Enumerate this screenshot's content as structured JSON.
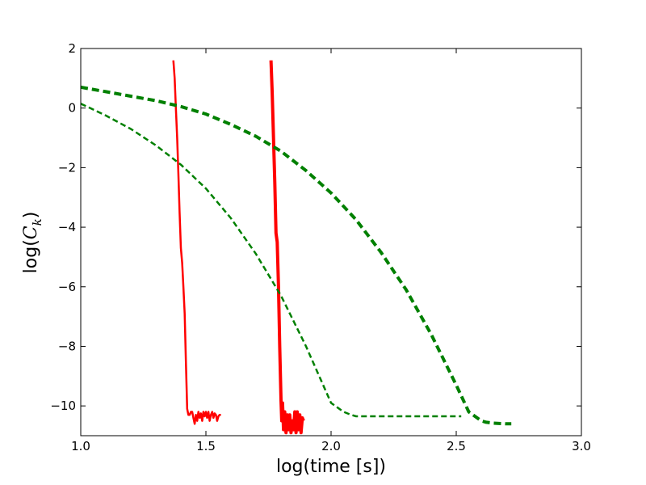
{
  "chart_data": {
    "type": "line",
    "title": "",
    "xlabel": "log(time [s])",
    "ylabel_prefix": "log(",
    "ylabel_var": "C",
    "ylabel_sub": "k",
    "ylabel_suffix": ")",
    "xlim": [
      1.0,
      3.0
    ],
    "ylim": [
      -11,
      2
    ],
    "x_ticks": [
      1.0,
      1.5,
      2.0,
      2.5,
      3.0
    ],
    "x_tick_labels": [
      "1.0",
      "1.5",
      "2.0",
      "2.5",
      "3.0"
    ],
    "y_ticks": [
      2,
      0,
      -2,
      -4,
      -6,
      -8,
      -10
    ],
    "y_tick_labels": [
      "2",
      "0",
      "−2",
      "−4",
      "−6",
      "−8",
      "−10"
    ],
    "grid": false,
    "series": [
      {
        "style": "solid",
        "color": "#ff0000",
        "weight": "normal",
        "x": [
          1.37,
          1.375,
          1.38,
          1.385,
          1.39,
          1.395,
          1.4,
          1.405,
          1.41,
          1.415,
          1.42,
          1.425,
          1.43,
          1.435,
          1.44,
          1.445,
          1.45,
          1.455,
          1.46,
          1.465,
          1.47,
          1.475,
          1.48,
          1.485,
          1.49,
          1.495,
          1.5,
          1.505,
          1.51,
          1.515,
          1.52,
          1.525,
          1.53,
          1.535,
          1.54,
          1.545,
          1.55,
          1.555,
          1.56
        ],
        "y": [
          1.6,
          1.0,
          0.0,
          -1.0,
          -2.2,
          -3.5,
          -4.7,
          -5.2,
          -6.0,
          -6.9,
          -8.5,
          -10.1,
          -10.3,
          -10.3,
          -10.2,
          -10.2,
          -10.4,
          -10.6,
          -10.3,
          -10.5,
          -10.2,
          -10.4,
          -10.25,
          -10.5,
          -10.2,
          -10.35,
          -10.2,
          -10.4,
          -10.2,
          -10.5,
          -10.3,
          -10.2,
          -10.4,
          -10.25,
          -10.3,
          -10.5,
          -10.35,
          -10.3,
          -10.3
        ]
      },
      {
        "style": "solid",
        "color": "#ff0000",
        "weight": "bold",
        "x": [
          1.76,
          1.765,
          1.77,
          1.775,
          1.78,
          1.785,
          1.79,
          1.795,
          1.8,
          1.803,
          1.806,
          1.81,
          1.815,
          1.82,
          1.825,
          1.83,
          1.835,
          1.84,
          1.845,
          1.85,
          1.855,
          1.86,
          1.865,
          1.87,
          1.875,
          1.88,
          1.885,
          1.89
        ],
        "y": [
          1.6,
          0.5,
          -1.0,
          -2.5,
          -4.2,
          -4.5,
          -6.0,
          -8.0,
          -9.8,
          -10.5,
          -9.9,
          -10.8,
          -10.2,
          -10.9,
          -10.3,
          -10.8,
          -10.3,
          -10.9,
          -10.5,
          -10.8,
          -10.2,
          -10.9,
          -10.2,
          -10.8,
          -10.3,
          -10.9,
          -10.4,
          -10.5
        ]
      },
      {
        "style": "dashed",
        "color": "#008000",
        "weight": "normal",
        "x": [
          1.0,
          1.1,
          1.2,
          1.3,
          1.4,
          1.5,
          1.6,
          1.7,
          1.8,
          1.9,
          2.0,
          2.05,
          2.08,
          2.1,
          2.15,
          2.2,
          2.3,
          2.4,
          2.5,
          2.52
        ],
        "y": [
          0.15,
          -0.25,
          -0.7,
          -1.25,
          -1.9,
          -2.7,
          -3.7,
          -4.9,
          -6.3,
          -8.0,
          -9.9,
          -10.2,
          -10.3,
          -10.35,
          -10.35,
          -10.35,
          -10.35,
          -10.35,
          -10.35,
          -10.35
        ]
      },
      {
        "style": "dashed",
        "color": "#008000",
        "weight": "bold",
        "x": [
          1.0,
          1.1,
          1.2,
          1.3,
          1.4,
          1.5,
          1.6,
          1.7,
          1.8,
          1.9,
          2.0,
          2.1,
          2.2,
          2.3,
          2.4,
          2.5,
          2.55,
          2.6,
          2.62,
          2.65,
          2.7,
          2.72
        ],
        "y": [
          0.7,
          0.55,
          0.4,
          0.25,
          0.05,
          -0.2,
          -0.55,
          -0.95,
          -1.45,
          -2.1,
          -2.85,
          -3.75,
          -4.85,
          -6.1,
          -7.6,
          -9.3,
          -10.2,
          -10.5,
          -10.55,
          -10.58,
          -10.6,
          -10.6
        ]
      }
    ]
  }
}
